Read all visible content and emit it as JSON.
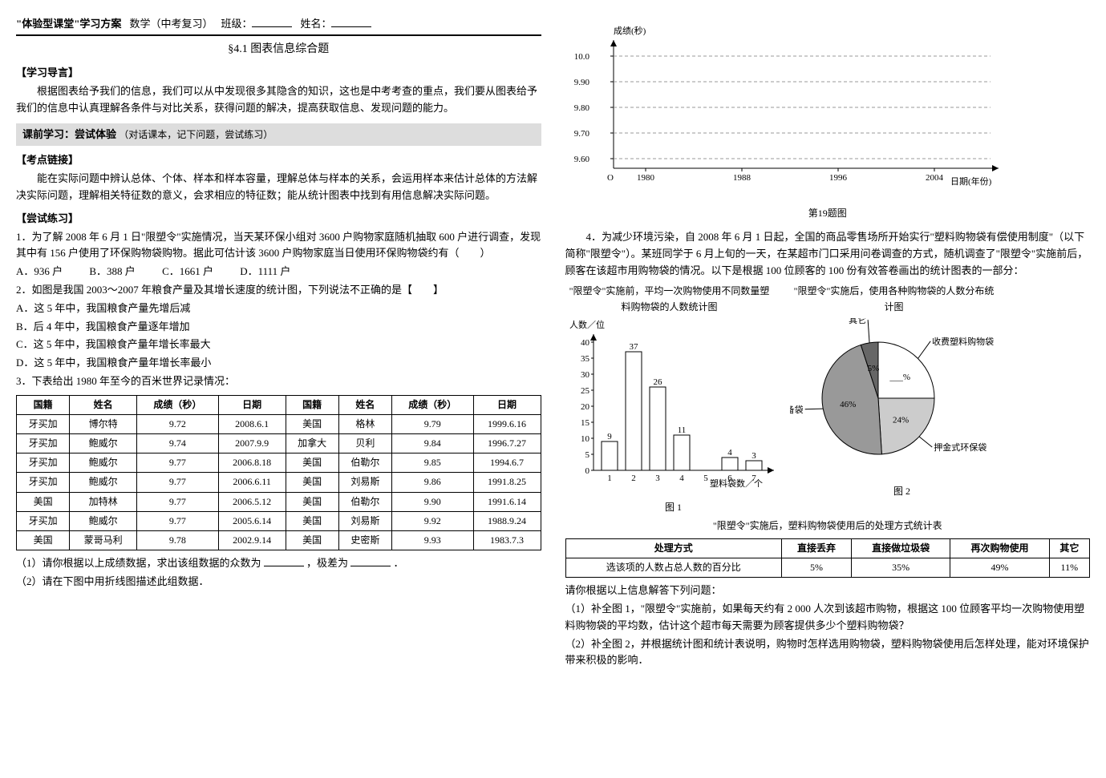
{
  "header": {
    "title": "\"体验型课堂\"学习方案",
    "subject": "数学（中考复习）",
    "class_label": "班级：",
    "name_label": "姓名："
  },
  "section_title": "§4.1 图表信息综合题",
  "guide": {
    "head": "【学习导言】",
    "text": "根据图表给予我们的信息，我们可以从中发现很多其隐含的知识，这也是中考考查的重点，我们要从图表给予我们的信息中认真理解各条件与对比关系，获得问题的解决，提高获取信息、发现问题的能力。"
  },
  "prestudy": {
    "bar_title": "课前学习：尝试体验",
    "bar_note": "（对话课本，记下问题，尝试练习）"
  },
  "links": {
    "head": "【考点链接】",
    "text": "能在实际问题中辨认总体、个体、样本和样本容量，理解总体与样本的关系，会运用样本来估计总体的方法解决实际问题，理解相关特征数的意义，会求相应的特征数；能从统计图表中找到有用信息解决实际问题。"
  },
  "practice_head": "【尝试练习】",
  "q1": {
    "text": "1．为了解 2008 年 6 月 1 日\"限塑令\"实施情况，当天某环保小组对 3600 户购物家庭随机抽取 600 户进行调查，发现其中有 156 户使用了环保购物袋购物。据此可估计该 3600 户购物家庭当日使用环保购物袋约有（　　）",
    "opts": [
      "A．936 户",
      "B．388 户",
      "C．1661 户",
      "D．1111 户"
    ]
  },
  "q2": {
    "text": "2．如图是我国 2003～2007 年粮食产量及其增长速度的统计图，下列说法不正确的是【　　】",
    "opts": [
      "A．这 5 年中，我国粮食产量先增后减",
      "B．后 4 年中，我国粮食产量逐年增加",
      "C．这 5 年中，我国粮食产量年增长率最大",
      "D．这 5 年中，我国粮食产量年增长率最小"
    ]
  },
  "q3": {
    "intro": "3．下表给出 1980 年至今的百米世界记录情况：",
    "headers": [
      "国籍",
      "姓名",
      "成绩（秒）",
      "日期",
      "国籍",
      "姓名",
      "成绩（秒）",
      "日期"
    ],
    "rows": [
      [
        "牙买加",
        "博尔特",
        "9.72",
        "2008.6.1",
        "美国",
        "格林",
        "9.79",
        "1999.6.16"
      ],
      [
        "牙买加",
        "鲍威尔",
        "9.74",
        "2007.9.9",
        "加拿大",
        "贝利",
        "9.84",
        "1996.7.27"
      ],
      [
        "牙买加",
        "鲍威尔",
        "9.77",
        "2006.8.18",
        "美国",
        "伯勒尔",
        "9.85",
        "1994.6.7"
      ],
      [
        "牙买加",
        "鲍威尔",
        "9.77",
        "2006.6.11",
        "美国",
        "刘易斯",
        "9.86",
        "1991.8.25"
      ],
      [
        "美国",
        "加特林",
        "9.77",
        "2006.5.12",
        "美国",
        "伯勒尔",
        "9.90",
        "1991.6.14"
      ],
      [
        "牙买加",
        "鲍威尔",
        "9.77",
        "2005.6.14",
        "美国",
        "刘易斯",
        "9.92",
        "1988.9.24"
      ],
      [
        "美国",
        "蒙哥马利",
        "9.78",
        "2002.9.14",
        "美国",
        "史密斯",
        "9.93",
        "1983.7.3"
      ]
    ],
    "sub1": "（1）请你根据以上成绩数据，求出该组数据的众数为",
    "sub1b": "，极差为",
    "sub1c": "．",
    "sub2": "（2）请在下图中用折线图描述此组数据．"
  },
  "chart_right": {
    "ylabel": "成绩(秒)",
    "yticks": [
      "10.0",
      "9.90",
      "9.80",
      "9.70",
      "9.60"
    ],
    "xlabel": "日期(年份)",
    "xticks": [
      "1980",
      "1988",
      "1996",
      "2004"
    ],
    "caption": "第19题图",
    "grid_color": "#999999",
    "axis_color": "#000000",
    "bg": "#ffffff"
  },
  "q4": {
    "text": "4．为减少环境污染，自 2008 年 6 月 1 日起，全国的商品零售场所开始实行\"塑料购物袋有偿使用制度\"（以下简称\"限塑令\"）。某班同学于 6 月上旬的一天，在某超市门口采用问卷调查的方式，随机调查了\"限塑令\"实施前后，顾客在该超市用购物袋的情况。以下是根据 100 位顾客的 100 份有效答卷画出的统计图表的一部分："
  },
  "bar_chart": {
    "title": "\"限塑令\"实施前，平均一次购物使用不同数量塑料购物袋的人数统计图",
    "ylabel": "人数／位",
    "xlabel": "塑料袋数／个",
    "yticks": [
      0,
      5,
      10,
      15,
      20,
      25,
      30,
      35,
      40
    ],
    "categories": [
      1,
      2,
      3,
      4,
      5,
      6,
      7
    ],
    "values": [
      9,
      37,
      26,
      11,
      null,
      4,
      3
    ],
    "labels_shown": [
      "9",
      "37",
      "26",
      "11",
      "",
      "4",
      "3"
    ],
    "bar_color": "#ffffff",
    "bar_border": "#000000",
    "caption": "图 1"
  },
  "pie_chart": {
    "title": "\"限塑令\"实施后，使用各种购物袋的人数分布统计图",
    "slices": [
      {
        "label": "收费塑料购物袋",
        "value": null,
        "color": "#ffffff",
        "text": "___%"
      },
      {
        "label": "押金式环保袋",
        "value": 24,
        "color": "#cccccc",
        "text": "24%"
      },
      {
        "label": "自备袋",
        "value": 46,
        "color": "#999999",
        "text": "46%"
      },
      {
        "label": "其它",
        "value": 5,
        "color": "#666666",
        "text": "5%"
      }
    ],
    "caption": "图 2"
  },
  "table2": {
    "title": "\"限塑令\"实施后，塑料购物袋使用后的处理方式统计表",
    "headers": [
      "处理方式",
      "直接丢弃",
      "直接做垃圾袋",
      "再次购物使用",
      "其它"
    ],
    "row_label": "选该项的人数占总人数的百分比",
    "row": [
      "5%",
      "35%",
      "49%",
      "11%"
    ]
  },
  "q4_subs": {
    "intro": "请你根据以上信息解答下列问题：",
    "s1": "（1）补全图 1，\"限塑令\"实施前，如果每天约有 2 000 人次到该超市购物，根据这 100 位顾客平均一次购物使用塑料购物袋的平均数，估计这个超市每天需要为顾客提供多少个塑料购物袋？",
    "s2": "（2）补全图 2，并根据统计图和统计表说明，购物时怎样选用购物袋，塑料购物袋使用后怎样处理，能对环境保护带来积极的影响．"
  }
}
